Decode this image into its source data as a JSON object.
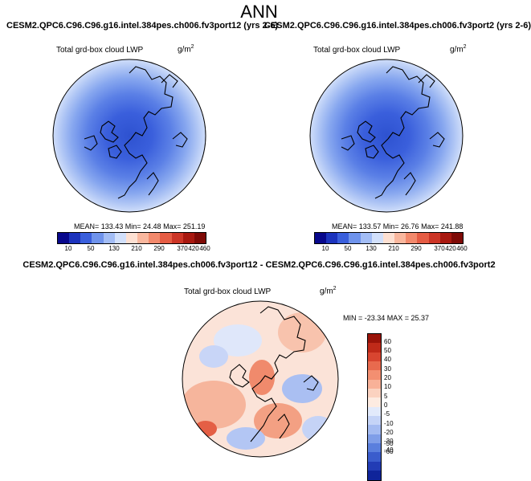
{
  "figure": {
    "season": "ANN",
    "difference_title": "CESM2.QPC6.C96.C96.g16.intel.384pes.ch006.fv3port12 - CESM2.QPC6.C96.C96.g16.intel.384pes.ch006.fv3port2"
  },
  "panels": [
    {
      "case_title": "CESM2.QPC6.C96.C96.g16.intel.384pes.ch006.fv3port12 (yrs 2-6)",
      "variable": "Total grd-box cloud LWP",
      "units_base": "g/m",
      "units_exp": "2",
      "stats": "MEAN= 133.43   Min=  24.48   Max= 251.19"
    },
    {
      "case_title": "CESM2.QPC6.C96.C96.g16.intel.384pes.ch006.fv3port2 (yrs 2-6)",
      "variable": "Total grd-box cloud LWP",
      "units_base": "g/m",
      "units_exp": "2",
      "stats": "MEAN= 133.57   Min=  26.76   Max= 241.88"
    },
    {
      "variable": "Total grd-box cloud LWP",
      "units_base": "g/m",
      "units_exp": "2",
      "stats": "MIN = -23.34  MAX =  25.37"
    }
  ],
  "colorbar_main": {
    "labels": [
      "10",
      "50",
      "130",
      "210",
      "290",
      "370",
      "420",
      "460"
    ],
    "colors": [
      "#08088c",
      "#1c33bd",
      "#3a5fdc",
      "#6f93ec",
      "#a3bdf5",
      "#d2e0fb",
      "#fde0d2",
      "#f9b79e",
      "#f2896c",
      "#e55c44",
      "#cc3526",
      "#a8180f",
      "#7e0a06"
    ]
  },
  "colorbar_diff": {
    "labels": [
      "60",
      "50",
      "40",
      "30",
      "20",
      "10",
      "5",
      "0",
      "-5",
      "-10",
      "-20",
      "-30",
      "-40",
      "-50",
      "-60"
    ],
    "colors": [
      "#9a1309",
      "#bf2a19",
      "#d84530",
      "#e86a4e",
      "#f38f71",
      "#f8b198",
      "#fbd2c0",
      "#fdebe1",
      "#e2eafb",
      "#c5d4f7",
      "#a4bbf1",
      "#7f9ee8",
      "#5a7fdd",
      "#3a5ccc",
      "#223cb5",
      "#0f249a"
    ]
  }
}
